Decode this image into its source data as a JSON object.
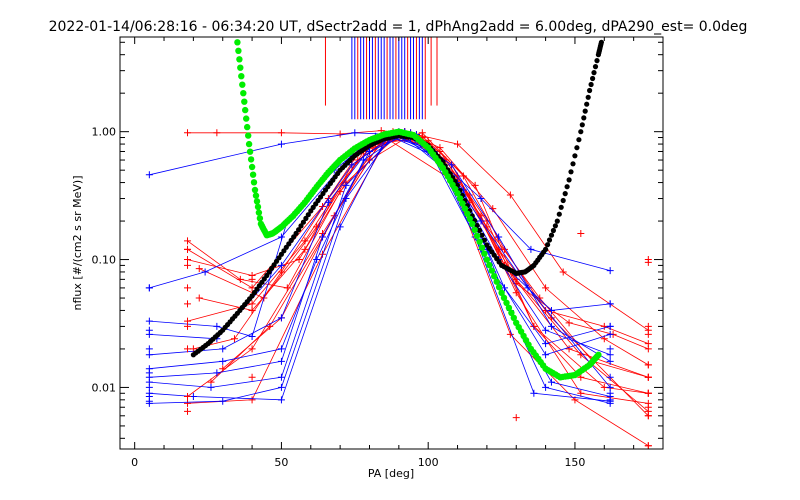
{
  "chart_data": {
    "type": "line",
    "title": "2022-01-14/06:28:16 - 06:34:20 UT, dSectr2add = 1, dPhAng2add = 6.00deg, dPA290_est=    0.0deg",
    "xlabel": "PA [deg]",
    "ylabel": "nflux [#/(cm2 s sr MeV)]",
    "xlim": [
      -5,
      180
    ],
    "ylim": [
      0.0033,
      5.5
    ],
    "yscale": "log",
    "x_ticks": [
      0,
      50,
      100,
      150
    ],
    "x_tick_labels": [
      "0",
      "50",
      "100",
      "150"
    ],
    "y_ticks": [
      1.0,
      0.1,
      0.01
    ],
    "y_tick_labels": [
      "1.00",
      "0.10",
      "0.01"
    ],
    "colors": {
      "red_series": "#ff0000",
      "blue_series": "#0000ff",
      "green_fit": "#00ee00",
      "black_fit": "#000000"
    },
    "series": [
      {
        "color": "red",
        "x": [
          18,
          40,
          64,
          77,
          88,
          98,
          116,
          130,
          148,
          163,
          175
        ],
        "y": [
          0.12,
          0.06,
          0.26,
          0.72,
          1.0,
          0.92,
          0.38,
          0.065,
          0.032,
          0.026,
          0.02
        ]
      },
      {
        "color": "red",
        "x": [
          18,
          40,
          64,
          80,
          92,
          104,
          120,
          136,
          152,
          175
        ],
        "y": [
          0.0085,
          0.02,
          0.16,
          0.6,
          0.88,
          0.7,
          0.2,
          0.03,
          0.012,
          0.009
        ]
      },
      {
        "color": "red",
        "x": [
          18,
          28,
          50,
          70,
          84,
          96,
          110,
          128,
          146,
          175
        ],
        "y": [
          0.98,
          0.98,
          0.98,
          0.96,
          1.02,
          0.95,
          0.8,
          0.32,
          0.08,
          0.028
        ]
      },
      {
        "color": "red",
        "x": [
          22,
          40,
          58,
          74,
          88,
          100,
          114,
          130,
          152,
          175
        ],
        "y": [
          0.05,
          0.04,
          0.12,
          0.55,
          0.95,
          0.8,
          0.28,
          0.07,
          0.018,
          0.0065
        ]
      },
      {
        "color": "red",
        "x": [
          18,
          40,
          64,
          86,
          108,
          128,
          150,
          175
        ],
        "y": [
          0.0075,
          0.008,
          0.11,
          0.88,
          0.42,
          0.026,
          0.008,
          0.0035
        ]
      },
      {
        "color": "red",
        "x": [
          20,
          34,
          50,
          66,
          80,
          92,
          104,
          122,
          140,
          160,
          175
        ],
        "y": [
          0.02,
          0.024,
          0.08,
          0.3,
          0.75,
          1.0,
          0.75,
          0.25,
          0.06,
          0.024,
          0.015
        ]
      },
      {
        "color": "red",
        "x": [
          18,
          40,
          56,
          72,
          90,
          106,
          120,
          138,
          156,
          175
        ],
        "y": [
          0.1,
          0.075,
          0.1,
          0.4,
          0.95,
          0.6,
          0.18,
          0.05,
          0.016,
          0.012
        ]
      },
      {
        "color": "red",
        "x": [
          22,
          44,
          62,
          78,
          94,
          108,
          124,
          142,
          175
        ],
        "y": [
          0.085,
          0.05,
          0.18,
          0.7,
          0.98,
          0.55,
          0.12,
          0.035,
          0.006
        ]
      },
      {
        "color": "red",
        "x": [
          18,
          36,
          52,
          70,
          84,
          98,
          112,
          126,
          140,
          160,
          175
        ],
        "y": [
          0.14,
          0.07,
          0.06,
          0.34,
          0.8,
          0.98,
          0.45,
          0.12,
          0.04,
          0.03,
          0.022
        ]
      },
      {
        "color": "red",
        "x": [
          26,
          46,
          64,
          82,
          98,
          114,
          130,
          152,
          175
        ],
        "y": [
          0.011,
          0.03,
          0.15,
          0.8,
          0.9,
          0.32,
          0.055,
          0.009,
          0.0075
        ]
      },
      {
        "color": "red",
        "x": [
          18,
          40,
          58,
          76,
          92,
          110,
          126,
          148,
          175
        ],
        "y": [
          0.033,
          0.045,
          0.14,
          0.6,
          1.0,
          0.45,
          0.09,
          0.02,
          0.012
        ]
      },
      {
        "color": "red",
        "x": [
          30,
          50,
          68,
          84,
          100,
          118,
          136,
          160,
          175
        ],
        "y": [
          0.014,
          0.035,
          0.22,
          0.85,
          0.85,
          0.22,
          0.03,
          0.01,
          0.009
        ]
      },
      {
        "color": "blue",
        "x": [
          5,
          50,
          75,
          88,
          100,
          118,
          135,
          162
        ],
        "y": [
          0.46,
          0.8,
          0.98,
          0.95,
          0.7,
          0.3,
          0.12,
          0.082
        ]
      },
      {
        "color": "blue",
        "x": [
          5,
          28,
          40,
          52,
          68,
          82,
          94,
          108,
          124,
          140,
          162
        ],
        "y": [
          0.033,
          0.03,
          0.025,
          0.2,
          0.5,
          0.92,
          0.9,
          0.45,
          0.1,
          0.028,
          0.018
        ]
      },
      {
        "color": "blue",
        "x": [
          5,
          30,
          50,
          72,
          88,
          102,
          118,
          140,
          162
        ],
        "y": [
          0.0075,
          0.0078,
          0.01,
          0.3,
          0.95,
          0.7,
          0.12,
          0.01,
          0.0075
        ]
      },
      {
        "color": "blue",
        "x": [
          5,
          28,
          50,
          64,
          80,
          94,
          110,
          126,
          140,
          162
        ],
        "y": [
          0.012,
          0.013,
          0.016,
          0.15,
          0.7,
          0.98,
          0.4,
          0.06,
          0.018,
          0.026
        ]
      },
      {
        "color": "blue",
        "x": [
          5,
          24,
          50,
          76,
          92,
          104,
          120,
          142,
          162
        ],
        "y": [
          0.06,
          0.08,
          0.15,
          0.75,
          1.0,
          0.6,
          0.12,
          0.04,
          0.045
        ]
      },
      {
        "color": "blue",
        "x": [
          5,
          30,
          50,
          66,
          82,
          96,
          112,
          128,
          142,
          162
        ],
        "y": [
          0.018,
          0.02,
          0.035,
          0.28,
          0.85,
          0.95,
          0.35,
          0.04,
          0.011,
          0.0085
        ]
      },
      {
        "color": "blue",
        "x": [
          5,
          20,
          50,
          70,
          86,
          100,
          116,
          136,
          162
        ],
        "y": [
          0.009,
          0.0085,
          0.008,
          0.18,
          0.92,
          0.75,
          0.15,
          0.009,
          0.0078
        ]
      },
      {
        "color": "blue",
        "x": [
          5,
          28,
          50,
          74,
          90,
          106,
          122,
          140,
          162
        ],
        "y": [
          0.026,
          0.024,
          0.09,
          0.55,
          1.0,
          0.5,
          0.08,
          0.022,
          0.03
        ]
      },
      {
        "color": "blue",
        "x": [
          5,
          30,
          50,
          62,
          78,
          92,
          108,
          124,
          142,
          162
        ],
        "y": [
          0.014,
          0.016,
          0.02,
          0.1,
          0.6,
          0.98,
          0.55,
          0.15,
          0.03,
          0.016
        ]
      },
      {
        "color": "blue",
        "x": [
          5,
          26,
          50,
          72,
          88,
          104,
          118,
          134,
          162
        ],
        "y": [
          0.011,
          0.01,
          0.012,
          0.38,
          0.9,
          0.62,
          0.2,
          0.06,
          0.01
        ]
      }
    ],
    "top_vertical_lines": {
      "x": [
        65,
        74,
        75,
        76,
        77,
        78,
        79,
        80,
        81,
        82,
        83,
        84,
        85,
        86,
        87,
        88,
        89,
        90,
        91,
        92,
        93,
        94,
        95,
        96,
        97,
        98,
        99,
        101,
        103
      ],
      "colors": [
        "red",
        "blue",
        "blue",
        "red",
        "blue",
        "blue",
        "red",
        "blue",
        "blue",
        "red",
        "blue",
        "blue",
        "blue",
        "red",
        "blue",
        "blue",
        "red",
        "blue",
        "blue",
        "blue",
        "red",
        "blue",
        "blue",
        "red",
        "blue",
        "blue",
        "red",
        "red",
        "red"
      ]
    },
    "green_fit": {
      "x": [
        35,
        37,
        39,
        41,
        43,
        45,
        47,
        50,
        54,
        58,
        62,
        66,
        70,
        75,
        80,
        85,
        90,
        95,
        100,
        105,
        110,
        115,
        120,
        125,
        130,
        135,
        140,
        145,
        150,
        155,
        158
      ],
      "y": [
        5.0,
        2.0,
        0.8,
        0.35,
        0.19,
        0.155,
        0.16,
        0.18,
        0.22,
        0.28,
        0.37,
        0.48,
        0.6,
        0.74,
        0.86,
        0.95,
        1.0,
        0.94,
        0.75,
        0.52,
        0.33,
        0.19,
        0.1,
        0.055,
        0.032,
        0.02,
        0.014,
        0.012,
        0.0125,
        0.015,
        0.018
      ]
    },
    "black_fit": {
      "x": [
        20,
        25,
        30,
        35,
        40,
        45,
        50,
        55,
        60,
        65,
        70,
        75,
        80,
        85,
        90,
        95,
        100,
        105,
        110,
        115,
        120,
        125,
        130,
        133,
        136,
        140,
        144,
        148,
        152,
        155,
        158,
        159
      ],
      "y": [
        0.018,
        0.022,
        0.028,
        0.038,
        0.052,
        0.075,
        0.11,
        0.16,
        0.24,
        0.35,
        0.5,
        0.65,
        0.78,
        0.88,
        0.93,
        0.9,
        0.78,
        0.58,
        0.38,
        0.22,
        0.13,
        0.09,
        0.078,
        0.08,
        0.09,
        0.12,
        0.2,
        0.42,
        1.0,
        2.1,
        4.0,
        5.0
      ]
    },
    "extra_points": {
      "red": [
        {
          "x": 18,
          "y": 0.12
        },
        {
          "x": 18,
          "y": 0.09
        },
        {
          "x": 18,
          "y": 0.06
        },
        {
          "x": 18,
          "y": 0.045
        },
        {
          "x": 18,
          "y": 0.03
        },
        {
          "x": 18,
          "y": 0.02
        },
        {
          "x": 18,
          "y": 0.0085
        },
        {
          "x": 18,
          "y": 0.0065
        },
        {
          "x": 40,
          "y": 0.07
        },
        {
          "x": 40,
          "y": 0.04
        },
        {
          "x": 40,
          "y": 0.012
        },
        {
          "x": 175,
          "y": 0.1
        },
        {
          "x": 175,
          "y": 0.095
        },
        {
          "x": 175,
          "y": 0.03
        },
        {
          "x": 175,
          "y": 0.026
        },
        {
          "x": 175,
          "y": 0.015
        },
        {
          "x": 175,
          "y": 0.012
        },
        {
          "x": 175,
          "y": 0.009
        },
        {
          "x": 175,
          "y": 0.007
        },
        {
          "x": 175,
          "y": 0.006
        },
        {
          "x": 175,
          "y": 0.0035
        },
        {
          "x": 130,
          "y": 0.0058
        },
        {
          "x": 152,
          "y": 0.16
        }
      ],
      "blue": [
        {
          "x": 5,
          "y": 0.06
        },
        {
          "x": 5,
          "y": 0.028
        },
        {
          "x": 5,
          "y": 0.02
        },
        {
          "x": 5,
          "y": 0.013
        },
        {
          "x": 5,
          "y": 0.01
        },
        {
          "x": 5,
          "y": 0.0085
        },
        {
          "x": 5,
          "y": 0.0078
        },
        {
          "x": 162,
          "y": 0.045
        },
        {
          "x": 162,
          "y": 0.03
        },
        {
          "x": 162,
          "y": 0.02
        },
        {
          "x": 162,
          "y": 0.012
        },
        {
          "x": 162,
          "y": 0.009
        },
        {
          "x": 162,
          "y": 0.008
        }
      ]
    }
  }
}
